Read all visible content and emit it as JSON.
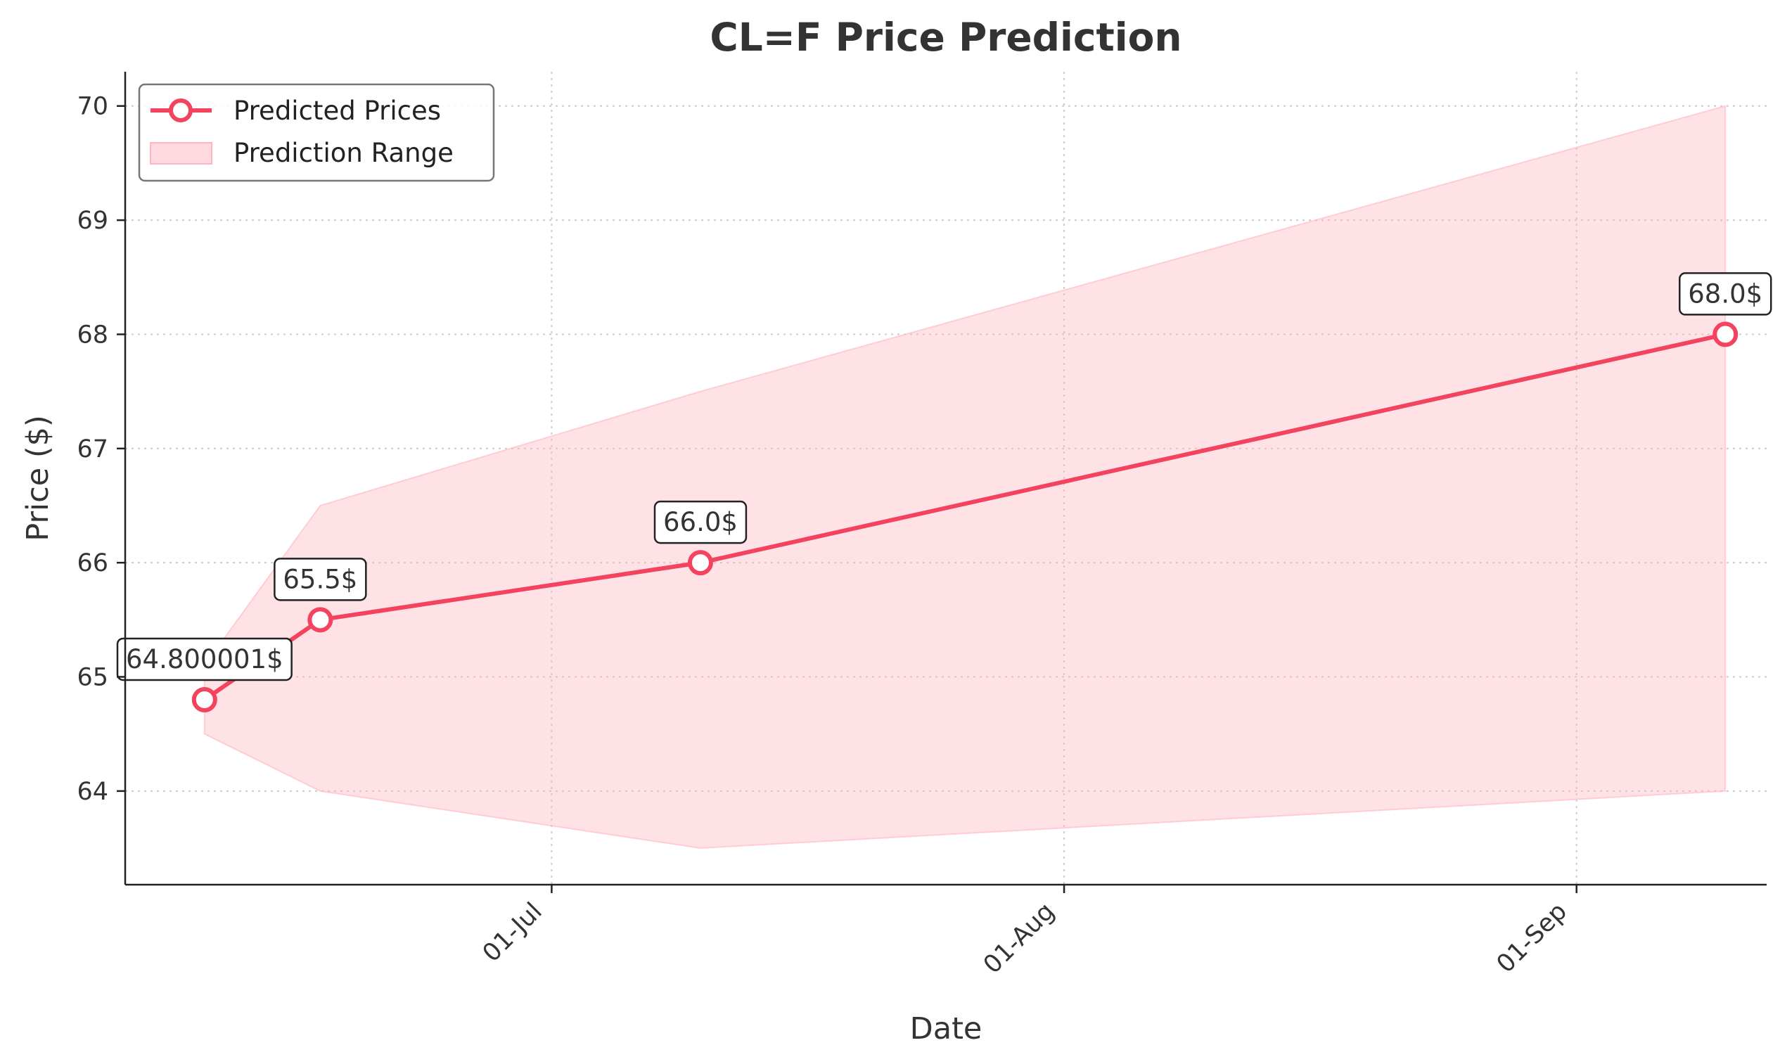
{
  "chart_data": {
    "type": "line",
    "title": "CL=F Price Prediction",
    "xlabel": "Date",
    "ylabel": "Price ($)",
    "ylim": [
      63.18,
      70.3
    ],
    "xlim_days": [
      -14.8,
      84.5
    ],
    "x_ticks": [
      {
        "label": "01-Jul",
        "day": 11
      },
      {
        "label": "01-Aug",
        "day": 42
      },
      {
        "label": "01-Sep",
        "day": 73
      }
    ],
    "y_ticks": [
      64,
      65,
      66,
      67,
      68,
      69,
      70
    ],
    "grid": true,
    "legend": {
      "position": "top-left",
      "entries": [
        "Predicted Prices",
        "Prediction Range"
      ]
    },
    "series": [
      {
        "name": "Predicted Prices",
        "color": "#f4435f",
        "points": [
          {
            "day": -10,
            "value": 64.800001,
            "label": "64.800001$"
          },
          {
            "day": -3,
            "value": 65.5,
            "label": "65.5$"
          },
          {
            "day": 20,
            "value": 66.0,
            "label": "66.0$"
          },
          {
            "day": 82,
            "value": 68.0,
            "label": "68.0$"
          }
        ]
      }
    ],
    "range": {
      "name": "Prediction Range",
      "color": "#ffb6c1",
      "days": [
        -10,
        -3,
        20,
        82
      ],
      "lower": [
        64.5,
        64.0,
        63.5,
        64.0
      ],
      "upper": [
        65.1,
        66.5,
        67.5,
        70.0
      ]
    }
  }
}
